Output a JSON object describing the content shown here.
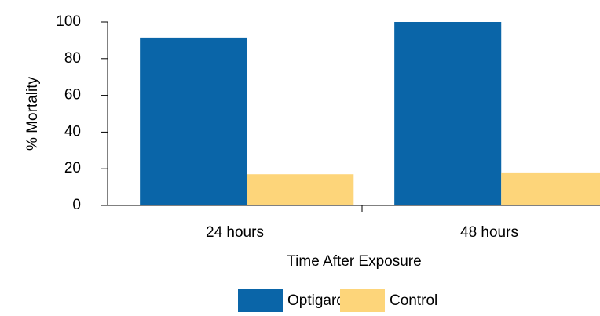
{
  "chart_data": {
    "type": "bar",
    "categories": [
      "24 hours",
      "48 hours"
    ],
    "series": [
      {
        "name": "Optigard Flex",
        "color": "#0a65a8",
        "values": [
          91.5,
          100
        ]
      },
      {
        "name": "Control",
        "color": "#fdd57a",
        "values": [
          17,
          18
        ]
      }
    ],
    "ylim": [
      0,
      100
    ],
    "yticks": [
      0,
      20,
      40,
      60,
      80,
      100
    ],
    "ylabel": "% Mortality",
    "xlabel": "Time After Exposure",
    "legend": "bottom",
    "grid": false
  }
}
